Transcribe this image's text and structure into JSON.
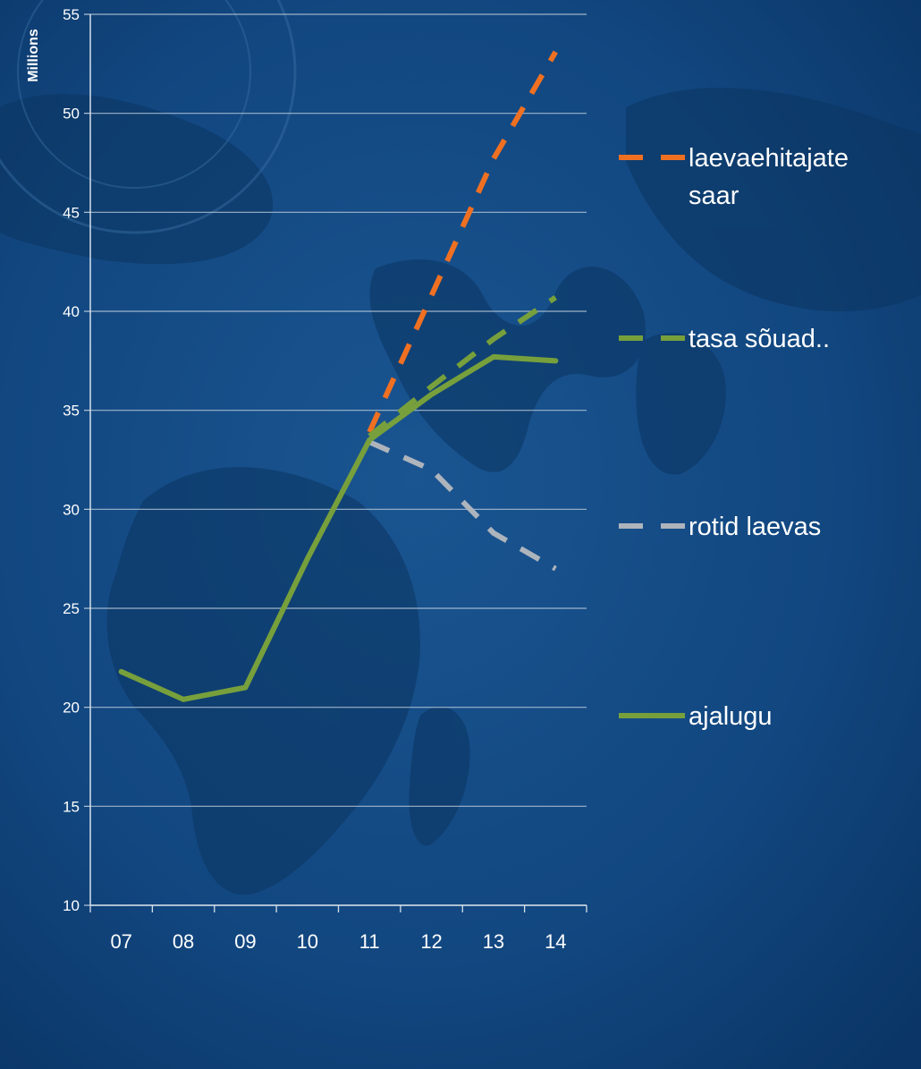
{
  "chart_data": {
    "type": "line",
    "ylabel": "Millions",
    "ylim": [
      10,
      55
    ],
    "yticks": [
      10,
      15,
      20,
      25,
      30,
      35,
      40,
      45,
      50,
      55
    ],
    "categories": [
      "07",
      "08",
      "09",
      "10",
      "11",
      "12",
      "13",
      "14"
    ],
    "grid": true,
    "legend_position": "right",
    "series": [
      {
        "name": "laevaehitajate saar",
        "name_lines": [
          "laevaehitajate",
          "saar"
        ],
        "style": "dashed",
        "color": "#f07022",
        "x": [
          "11",
          "12",
          "13",
          "14"
        ],
        "values": [
          33.9,
          40.8,
          47.7,
          53.1
        ]
      },
      {
        "name": "tasa sõuad..",
        "name_lines": [
          "tasa sõuad.."
        ],
        "style": "dashed",
        "color": "#77a03c",
        "x": [
          "11",
          "12",
          "13",
          "14"
        ],
        "values": [
          33.7,
          36.2,
          38.6,
          40.7
        ]
      },
      {
        "name": "rotid laevas",
        "name_lines": [
          "rotid laevas"
        ],
        "style": "dashed",
        "color": "#aeb4bc",
        "x": [
          "11",
          "12",
          "13",
          "14"
        ],
        "values": [
          33.4,
          32.0,
          28.8,
          27.0
        ]
      },
      {
        "name": "ajalugu",
        "name_lines": [
          "ajalugu"
        ],
        "style": "solid",
        "color": "#77a03c",
        "x": [
          "07",
          "08",
          "09",
          "10",
          "11",
          "12",
          "13",
          "14"
        ],
        "values": [
          21.8,
          20.4,
          21.0,
          27.5,
          33.5,
          35.8,
          37.7,
          37.5
        ]
      }
    ]
  }
}
